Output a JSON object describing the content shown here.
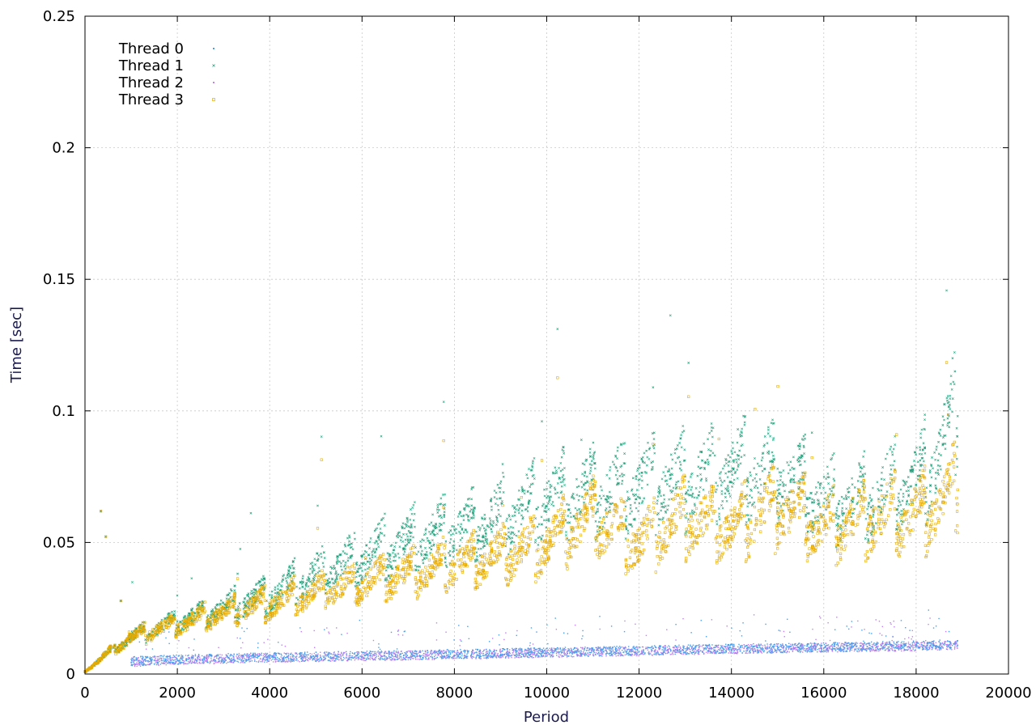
{
  "chart_data": {
    "type": "scatter",
    "xlabel": "Period",
    "ylabel": "Time [sec]",
    "xlim": [
      0,
      20000
    ],
    "ylim": [
      0,
      0.25
    ],
    "x_ticks": [
      0,
      2000,
      4000,
      6000,
      8000,
      10000,
      12000,
      14000,
      16000,
      18000,
      20000
    ],
    "y_ticks": [
      0,
      0.05,
      0.1,
      0.15,
      0.2,
      0.25
    ],
    "x_tick_labels": [
      "0",
      "2000",
      "4000",
      "6000",
      "8000",
      "10000",
      "12000",
      "14000",
      "16000",
      "18000",
      "20000"
    ],
    "y_tick_labels": [
      "0",
      "0.05",
      "0.1",
      "0.15",
      "0.2",
      "0.25"
    ],
    "grid": true,
    "legend_position": "top-left",
    "series": [
      {
        "name": "Thread 0",
        "color": "#4a9ee8",
        "marker": "dot",
        "x": [
          1000,
          2000,
          4000,
          6000,
          8000,
          10000,
          12000,
          14000,
          16000,
          18000,
          18900
        ],
        "y": [
          0.0045,
          0.0052,
          0.006,
          0.0066,
          0.0072,
          0.0079,
          0.0086,
          0.0093,
          0.0098,
          0.0105,
          0.011
        ]
      },
      {
        "name": "Thread 1",
        "color": "#1a9e77",
        "marker": "x",
        "x": [
          0,
          500,
          1000,
          2000,
          3000,
          4000,
          5000,
          6000,
          7000,
          8000,
          9000,
          10000,
          11000,
          12000,
          13000,
          14000,
          15000,
          16000,
          17000,
          18000,
          18900
        ],
        "y": [
          0.001,
          0.008,
          0.014,
          0.02,
          0.025,
          0.03,
          0.038,
          0.045,
          0.05,
          0.055,
          0.06,
          0.067,
          0.07,
          0.072,
          0.075,
          0.077,
          0.078,
          0.065,
          0.068,
          0.072,
          0.098
        ]
      },
      {
        "name": "Thread 2",
        "color": "#c080f0",
        "marker": "dot",
        "x": [
          1000,
          2000,
          4000,
          6000,
          8000,
          10000,
          12000,
          14000,
          16000,
          18000,
          18900
        ],
        "y": [
          0.0042,
          0.005,
          0.0058,
          0.0064,
          0.007,
          0.0077,
          0.0084,
          0.0091,
          0.0096,
          0.0102,
          0.0107
        ]
      },
      {
        "name": "Thread 3",
        "color": "#e6ab02",
        "marker": "square",
        "x": [
          0,
          500,
          1000,
          2000,
          3000,
          4000,
          5000,
          6000,
          7000,
          8000,
          9000,
          10000,
          11000,
          12000,
          13000,
          14000,
          15000,
          16000,
          17000,
          18000,
          18900
        ],
        "y": [
          0.001,
          0.008,
          0.014,
          0.019,
          0.023,
          0.027,
          0.031,
          0.035,
          0.038,
          0.042,
          0.045,
          0.05,
          0.06,
          0.05,
          0.06,
          0.055,
          0.065,
          0.055,
          0.06,
          0.06,
          0.07
        ]
      }
    ]
  }
}
